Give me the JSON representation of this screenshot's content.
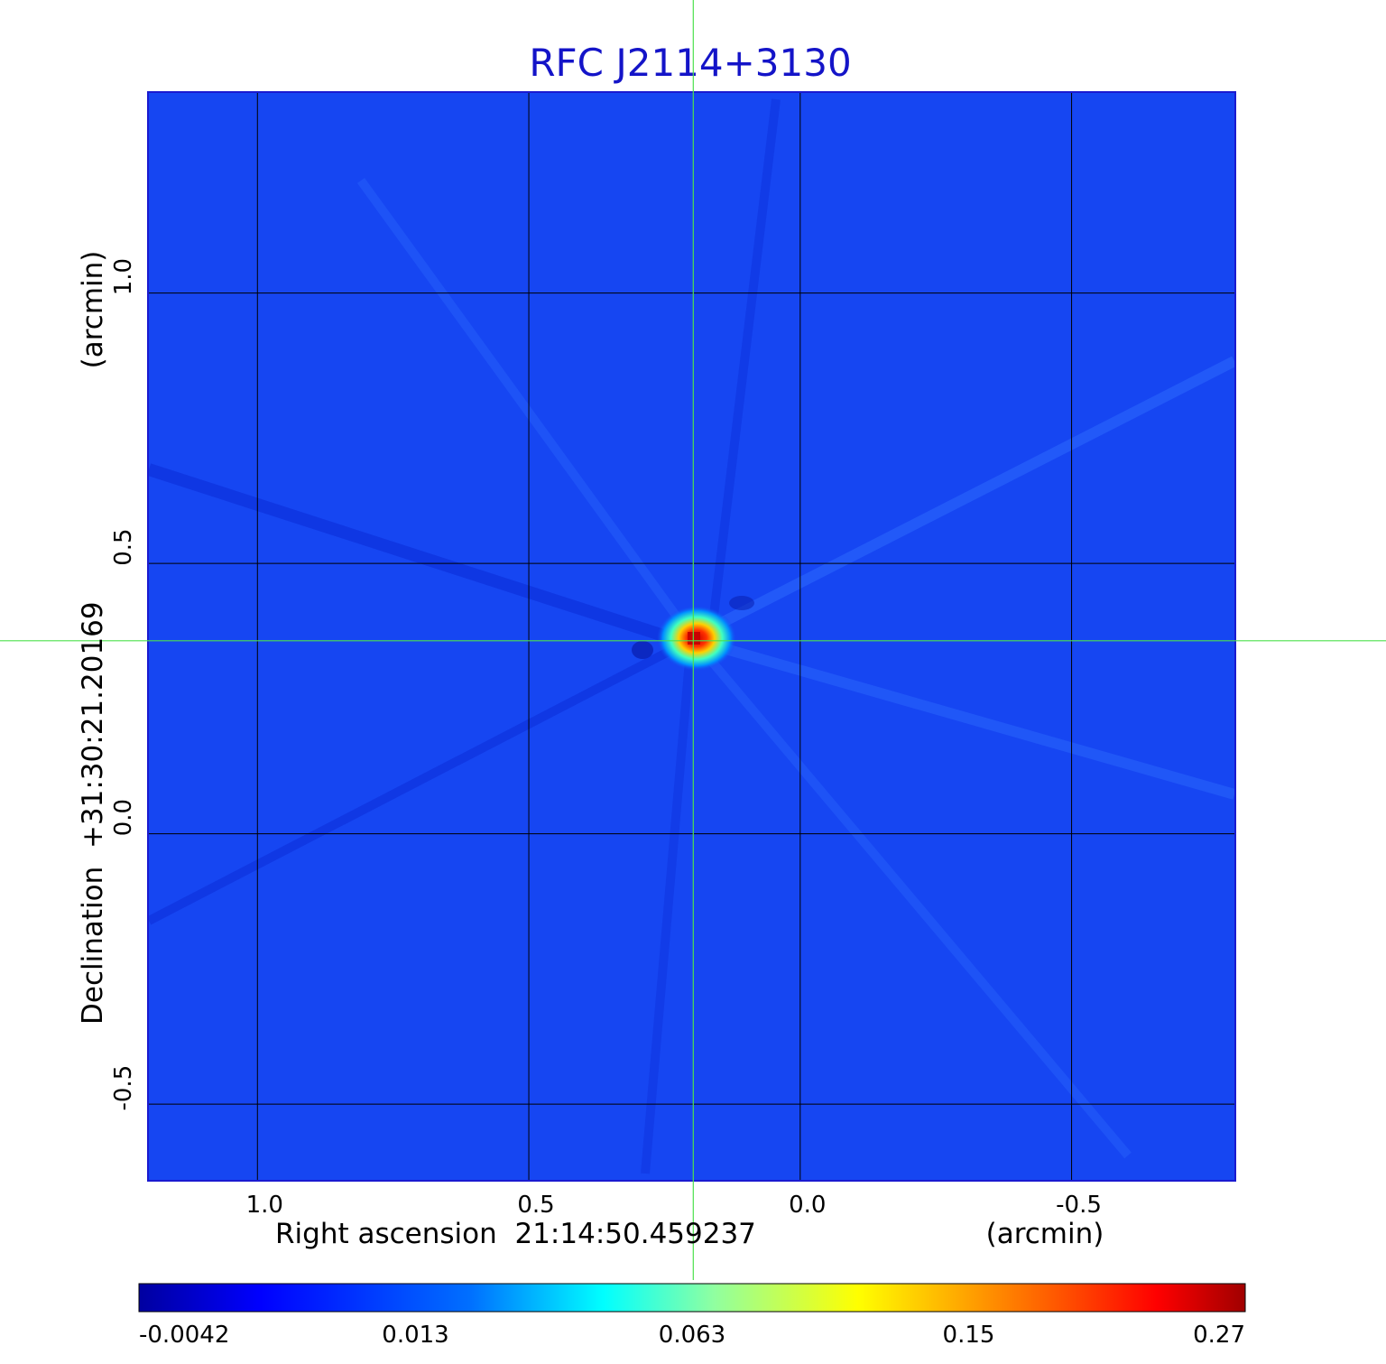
{
  "chart_data": {
    "type": "heatmap",
    "title": "RFC J2114+3130",
    "xlabel": "Right ascension  21:14:50.459237",
    "xunit": "(arcmin)",
    "ylabel": "Declination  +31:30:21.20169",
    "yunit": "(arcmin)",
    "xlim": [
      1.2,
      -0.8
    ],
    "ylim": [
      -0.64,
      1.37
    ],
    "x_ticks": [
      {
        "value": 1.0,
        "label": "1.0"
      },
      {
        "value": 0.5,
        "label": "0.5"
      },
      {
        "value": 0.0,
        "label": "0.0"
      },
      {
        "value": -0.5,
        "label": "-0.5"
      }
    ],
    "y_ticks": [
      {
        "value": 1.0,
        "label": "1.0"
      },
      {
        "value": 0.5,
        "label": "0.5"
      },
      {
        "value": 0.0,
        "label": "0.0"
      },
      {
        "value": -0.5,
        "label": "-0.5"
      }
    ],
    "grid": true,
    "crosshair": {
      "x": 0.197,
      "y": 0.357,
      "color": "#4ce04c"
    },
    "source": {
      "x": 0.197,
      "y": 0.357,
      "peak": 0.27
    },
    "colorbar": {
      "orientation": "horizontal",
      "labels": [
        "-0.0042",
        "0.013",
        "0.063",
        "0.15",
        "0.27"
      ],
      "colormap": "jet"
    },
    "background_color": "#1646f2"
  }
}
